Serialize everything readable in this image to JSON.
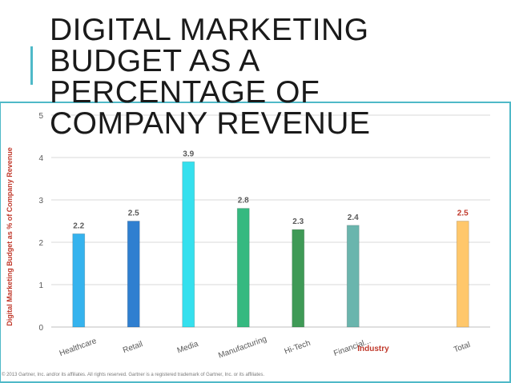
{
  "title": "DIGITAL MARKETING BUDGET AS A PERCENTAGE OF COMPANY REVENUE",
  "footer": "© 2013 Gartner, Inc. and/or its affiliates. All rights reserved. Gartner is a registered trademark of Gartner, Inc. or its affiliates.",
  "colors": {
    "frame": "#4fb9c8",
    "axis_title": "#c0392b",
    "grid": "#d9d9d9",
    "tick_text": "#595959",
    "data_label": "#595959",
    "total_label": "#c0392b"
  },
  "chart_data": {
    "type": "bar",
    "title": "",
    "xlabel": "Industry",
    "ylabel": "Digital Marketing Budget as % of Company Revenue",
    "ylim": [
      0,
      5
    ],
    "yticks": [
      "0",
      "1",
      "2",
      "3",
      "4",
      "5"
    ],
    "grid": true,
    "categories": [
      "Healthcare",
      "Retail",
      "Media",
      "Manufacturing",
      "Hi-Tech",
      "Financial...",
      "",
      "Total"
    ],
    "values": [
      2.2,
      2.5,
      3.9,
      2.8,
      2.3,
      2.4,
      null,
      2.5
    ],
    "labels": [
      "2.2",
      "2.5",
      "3.9",
      "2.8",
      "2.3",
      "2.4",
      "",
      "2.5"
    ],
    "bar_colors": [
      "#35b3ee",
      "#2f7fd0",
      "#35e0ee",
      "#35b980",
      "#3f9a56",
      "#6ab5ad",
      "",
      "#ffc76b"
    ]
  }
}
